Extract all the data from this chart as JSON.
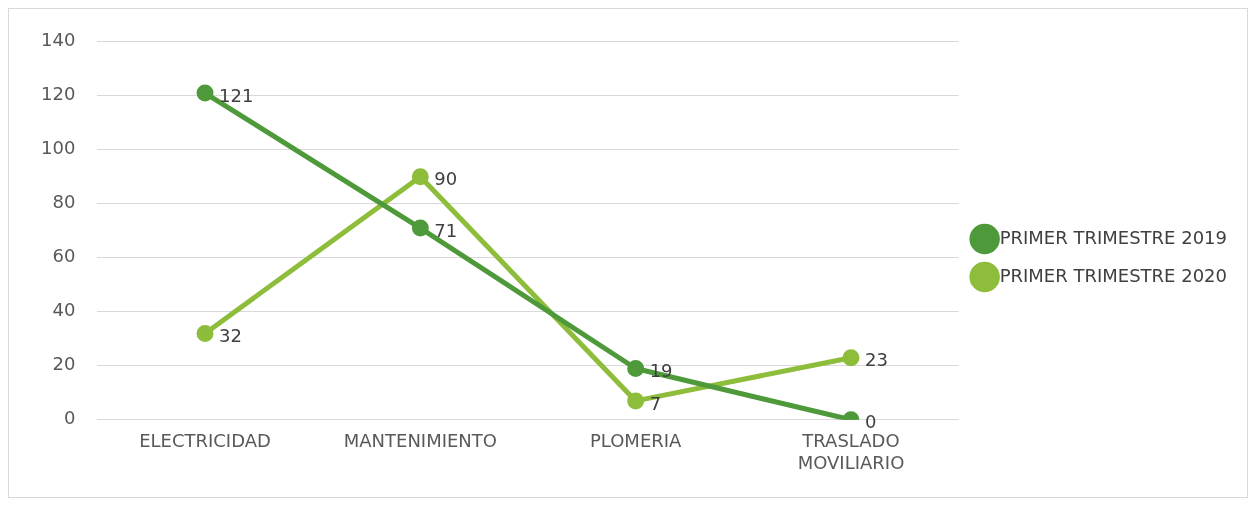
{
  "chart_data": {
    "type": "line",
    "categories": [
      "ELECTRICIDAD",
      "MANTENIMIENTO",
      "PLOMERIA",
      "TRASLADO MOVILIARIO"
    ],
    "series": [
      {
        "name": "PRIMER TRIMESTRE 2019",
        "color": "#4e9a3a",
        "values": [
          121,
          71,
          19,
          0
        ]
      },
      {
        "name": "PRIMER TRIMESTRE 2020",
        "color": "#8dbd3a",
        "values": [
          32,
          90,
          7,
          23
        ]
      }
    ],
    "ylim": [
      0,
      140
    ],
    "yticks": [
      0,
      20,
      40,
      60,
      80,
      100,
      120,
      140
    ],
    "grid": "y",
    "legend": "right",
    "marker": "circle",
    "line_style": "solid",
    "data_labels": true
  }
}
